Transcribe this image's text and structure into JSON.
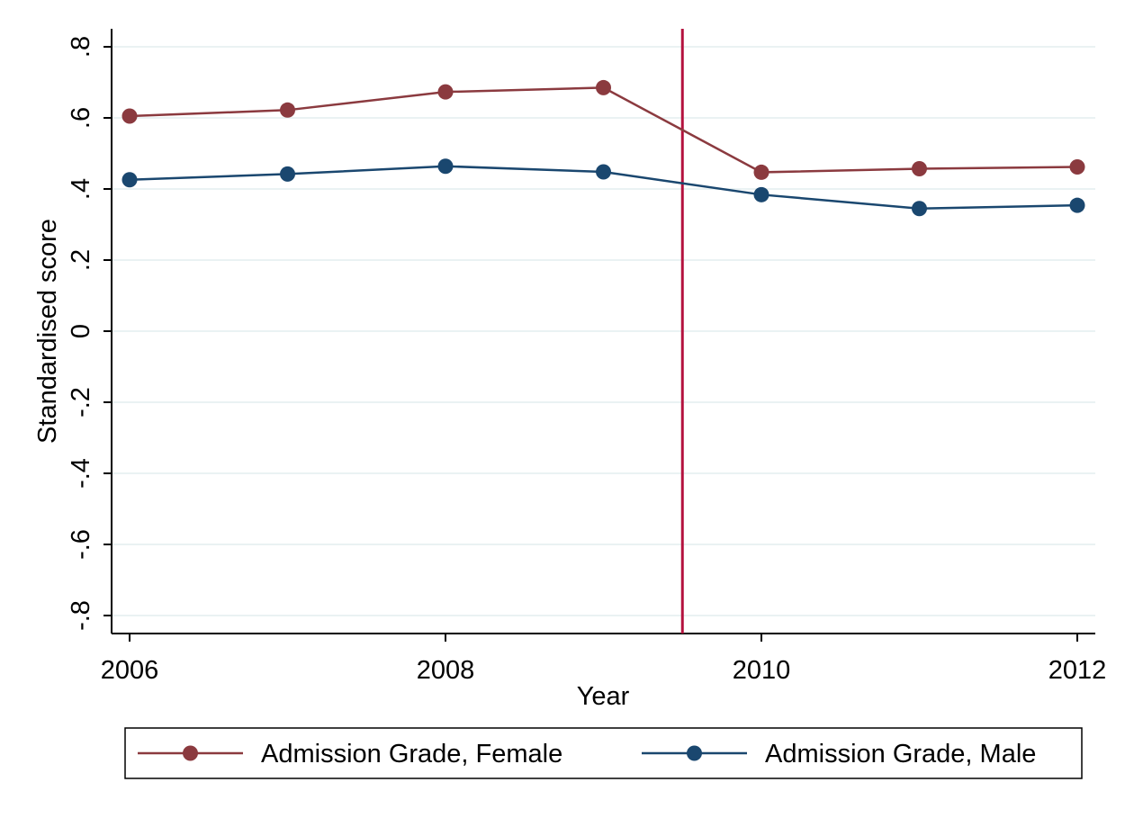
{
  "chart_data": {
    "type": "line",
    "xlabel": "Year",
    "ylabel": "Standardised score",
    "xlim": [
      2006,
      2012
    ],
    "ylim": [
      -0.8,
      0.8
    ],
    "x_ticks": [
      2006,
      2008,
      2010,
      2012
    ],
    "x_tick_labels": [
      "2006",
      "2008",
      "2010",
      "2012"
    ],
    "y_ticks": [
      -0.8,
      -0.6,
      -0.4,
      -0.2,
      0,
      0.2,
      0.4,
      0.6,
      0.8
    ],
    "y_tick_labels": [
      "-.8",
      "-.6",
      "-.4",
      "-.2",
      "0",
      ".2",
      ".4",
      ".6",
      ".8"
    ],
    "grid": true,
    "reference_line_x": 2009.5,
    "x": [
      2006,
      2007,
      2008,
      2009,
      2010,
      2011,
      2012
    ],
    "series": [
      {
        "name": "Admission Grade, Female",
        "color": "#8b3a3f",
        "values": [
          0.605,
          0.622,
          0.673,
          0.685,
          0.447,
          0.457,
          0.462
        ]
      },
      {
        "name": "Admission Grade, Male",
        "color": "#1a476f",
        "values": [
          0.426,
          0.442,
          0.464,
          0.448,
          0.384,
          0.345,
          0.354
        ]
      }
    ],
    "legend_position": "bottom",
    "reference_line_color": "#b4123e",
    "grid_color": "#eaf2f3"
  }
}
